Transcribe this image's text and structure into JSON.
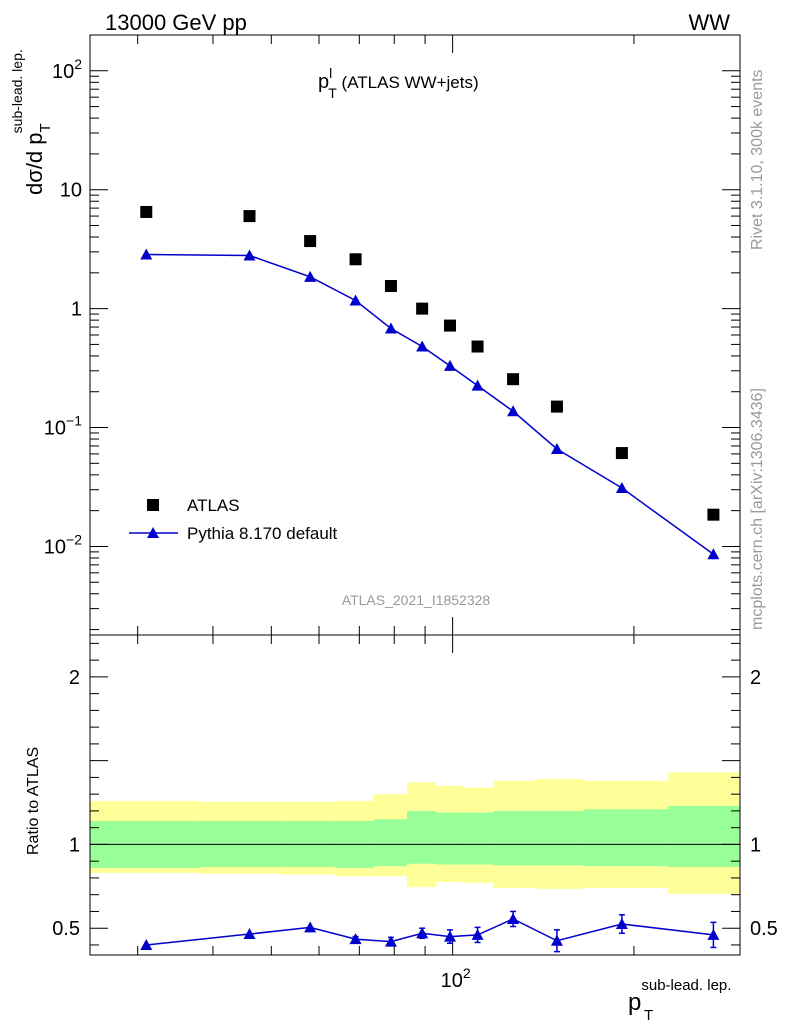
{
  "header": {
    "left": "13000 GeV pp",
    "right": "WW"
  },
  "side_labels": {
    "rivet": "Rivet 3.1.10,  300k events",
    "mcplots": "mcplots.cern.ch [arXiv:1306.3436]"
  },
  "analysis_id": "ATLAS_2021_I1852328",
  "chart_data": [
    {
      "type": "scatter",
      "panel": "main",
      "title_main": "p",
      "title_sup": "l",
      "title_sub": "T",
      "title_rest": " (ATLAS WW+jets)",
      "ylabel_main": "dσ/d p",
      "ylabel_sub": "T",
      "ylabel_sup": "sub-lead. lep.",
      "yscale": "log",
      "xscale": "log",
      "xlim": [
        25,
        300
      ],
      "ylim": [
        0.0018,
        200
      ],
      "yticks": [
        {
          "value": 100,
          "base": "10",
          "exp": "2"
        },
        {
          "value": 10,
          "base": "10",
          "exp": ""
        },
        {
          "value": 1,
          "base": "1",
          "exp": ""
        },
        {
          "value": 0.1,
          "base": "10",
          "exp": "−1"
        },
        {
          "value": 0.01,
          "base": "10",
          "exp": "−2"
        }
      ],
      "legend_position": "bottom-left",
      "series": [
        {
          "name": "ATLAS",
          "marker": "square",
          "color": "#000000",
          "x": [
            31,
            46,
            58,
            69,
            79,
            89,
            99,
            110,
            126,
            149,
            191,
            271
          ],
          "y": [
            6.5,
            6.0,
            3.7,
            2.6,
            1.55,
            1.0,
            0.72,
            0.48,
            0.255,
            0.15,
            0.061,
            0.0185
          ],
          "yerr": [
            0,
            0,
            0,
            0,
            0,
            0,
            0,
            0,
            0,
            0,
            0,
            0
          ]
        },
        {
          "name": "Pythia 8.170 default",
          "marker": "triangle",
          "color": "#0000cc",
          "x": [
            31,
            46,
            58,
            69,
            79,
            89,
            99,
            110,
            126,
            149,
            191,
            271
          ],
          "y": [
            2.85,
            2.8,
            1.85,
            1.17,
            0.68,
            0.48,
            0.33,
            0.225,
            0.137,
            0.066,
            0.031,
            0.0086
          ],
          "yerr": [
            0,
            0,
            0,
            0,
            0,
            0,
            0,
            0,
            0,
            0.004,
            0,
            0.0008
          ]
        }
      ]
    },
    {
      "type": "line",
      "panel": "ratio",
      "ylabel": "Ratio to ATLAS",
      "xlabel_main": "p",
      "xlabel_sub": "T",
      "xlabel_sup": "sub-lead. lep.",
      "xscale": "log",
      "xlim": [
        25,
        300
      ],
      "ylim": [
        0.34,
        2.25
      ],
      "yticks": [
        0.5,
        1,
        2
      ],
      "ytick_labels": [
        "0.5",
        "1",
        "2"
      ],
      "xtick_major": {
        "value": 100,
        "base": "10",
        "exp": "2"
      },
      "reference_line": 1,
      "bands": {
        "edges": [
          25,
          38,
          52,
          64,
          74,
          84,
          94,
          104,
          117,
          137,
          165,
          228,
          300
        ],
        "inner_color": "#99ff99",
        "outer_color": "#ffff99",
        "inner_lo": [
          0.86,
          0.865,
          0.865,
          0.86,
          0.87,
          0.885,
          0.88,
          0.88,
          0.875,
          0.875,
          0.87,
          0.865
        ],
        "inner_hi": [
          1.14,
          1.14,
          1.14,
          1.14,
          1.15,
          1.2,
          1.19,
          1.19,
          1.2,
          1.2,
          1.21,
          1.23
        ],
        "outer_lo": [
          0.83,
          0.825,
          0.82,
          0.81,
          0.81,
          0.745,
          0.775,
          0.77,
          0.74,
          0.735,
          0.74,
          0.705
        ],
        "outer_hi": [
          1.26,
          1.255,
          1.255,
          1.26,
          1.3,
          1.37,
          1.35,
          1.34,
          1.38,
          1.39,
          1.38,
          1.43
        ]
      },
      "series": [
        {
          "name": "Pythia 8.170 default",
          "color": "#0000cc",
          "x": [
            31,
            46,
            58,
            69,
            79,
            89,
            99,
            110,
            126,
            149,
            191,
            271
          ],
          "y": [
            0.4,
            0.465,
            0.505,
            0.435,
            0.42,
            0.47,
            0.45,
            0.46,
            0.555,
            0.425,
            0.525,
            0.46
          ],
          "yerr": [
            0,
            0,
            0,
            0.015,
            0.025,
            0.03,
            0.04,
            0.045,
            0.045,
            0.065,
            0.055,
            0.075
          ]
        }
      ]
    }
  ]
}
